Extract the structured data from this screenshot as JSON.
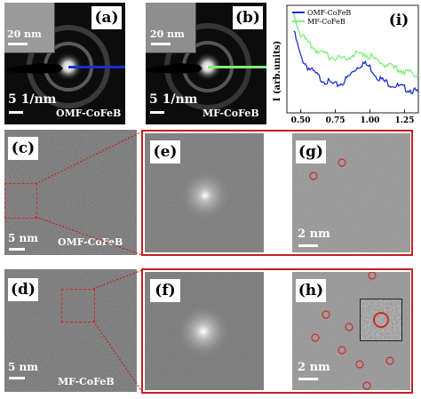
{
  "colors": {
    "omf_line": "#1a2fd0",
    "mf_line": "#7ef07a",
    "highlight_box": "#d42a2a",
    "panel_frame": "#c41e1e"
  },
  "panel_a": {
    "label": "(a)",
    "inset_scale": "20 nm",
    "scale": "5 1/nm",
    "sample": "OMF-CoFeB"
  },
  "panel_b": {
    "label": "(b)",
    "inset_scale": "20 nm",
    "scale": "5 1/nm",
    "sample": "MF-CoFeB"
  },
  "panel_c": {
    "label": "(c)",
    "scale": "5 nm",
    "sample": "OMF-CoFeB"
  },
  "panel_d": {
    "label": "(d)",
    "scale": "5 nm",
    "sample": "MF-CoFeB"
  },
  "panel_e": {
    "label": "(e)"
  },
  "panel_f": {
    "label": "(f)"
  },
  "panel_g": {
    "label": "(g)",
    "scale": "2 nm"
  },
  "panel_h": {
    "label": "(h)",
    "scale": "2 nm"
  },
  "chart_data": {
    "type": "line",
    "label": "(i)",
    "ylabel": "I (arb.units)",
    "xlabel": "",
    "xlim": [
      0.4,
      1.35
    ],
    "xticks": [
      "0.50",
      "0.75",
      "1.00",
      "1.25"
    ],
    "grid": false,
    "legend_position": "top-left",
    "series": [
      {
        "name": "OMF-CoFeB",
        "color": "#1a2fd0",
        "x": [
          0.45,
          0.5,
          0.55,
          0.6,
          0.65,
          0.7,
          0.75,
          0.8,
          0.85,
          0.9,
          0.95,
          1.0,
          1.05,
          1.1,
          1.15,
          1.2,
          1.25,
          1.3,
          1.35
        ],
        "y": [
          0.78,
          0.52,
          0.42,
          0.36,
          0.3,
          0.27,
          0.24,
          0.26,
          0.33,
          0.41,
          0.46,
          0.42,
          0.33,
          0.28,
          0.25,
          0.23,
          0.21,
          0.19,
          0.17
        ]
      },
      {
        "name": "MF-CoFeB",
        "color": "#7ef07a",
        "x": [
          0.45,
          0.5,
          0.55,
          0.6,
          0.65,
          0.7,
          0.75,
          0.8,
          0.85,
          0.9,
          0.95,
          1.0,
          1.05,
          1.1,
          1.15,
          1.2,
          1.25,
          1.3,
          1.35
        ],
        "y": [
          0.95,
          0.75,
          0.66,
          0.6,
          0.56,
          0.53,
          0.51,
          0.51,
          0.53,
          0.55,
          0.56,
          0.53,
          0.48,
          0.45,
          0.42,
          0.4,
          0.38,
          0.36,
          0.34
        ]
      }
    ]
  }
}
